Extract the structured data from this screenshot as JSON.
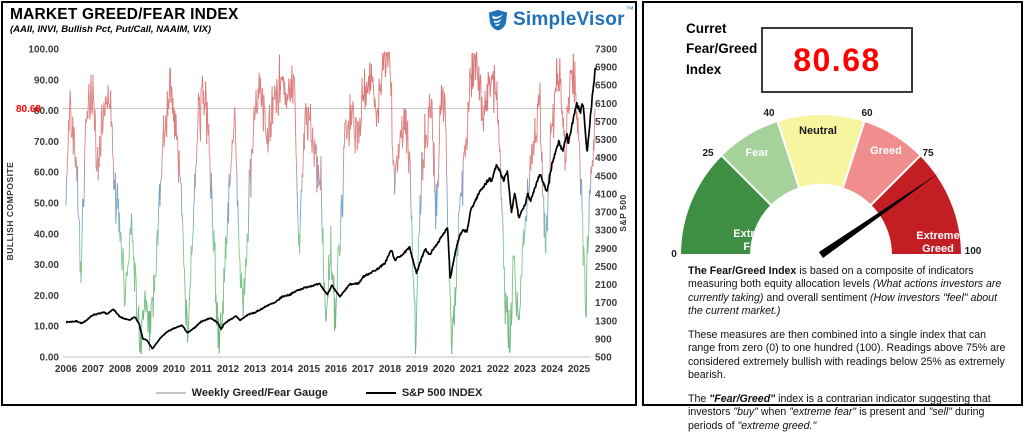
{
  "left_panel": {
    "title": "MARKET GREED/FEAR INDEX",
    "subtitle": "(AAII, INVI, Bullish Pct, Put/Call, NAAIM, VIX)",
    "logo": {
      "name": "SimpleVisor",
      "tm": "™",
      "color": "#1F71B8"
    },
    "legend": [
      {
        "label": "Weekly Greed/Fear Gauge",
        "color": "#c8c8c4"
      },
      {
        "label": "S&P 500 INDEX",
        "color": "#000000"
      }
    ]
  },
  "chart_data": {
    "type": "line",
    "title": "MARKET GREED/FEAR INDEX",
    "subtitle": "(AAII, INVI, Bullish Pct, Put/Call, NAAIM, VIX)",
    "x_ticks": [
      2006,
      2007,
      2008,
      2009,
      2010,
      2011,
      2012,
      2013,
      2014,
      2015,
      2016,
      2017,
      2018,
      2019,
      2020,
      2021,
      2022,
      2023,
      2024,
      2025
    ],
    "left_axis": {
      "label": "BULLISH COMPOSITE",
      "min": 0,
      "max": 100,
      "ticks": [
        "100.00",
        "90.00",
        "80.00",
        "70.00",
        "60.00",
        "50.00",
        "40.00",
        "30.00",
        "20.00",
        "10.00",
        "0.00"
      ]
    },
    "right_axis": {
      "label": "S&P 500",
      "min": 500,
      "max": 7300,
      "ticks": [
        7300,
        6900,
        6500,
        6100,
        5700,
        5300,
        4900,
        4500,
        4100,
        3700,
        3300,
        2900,
        2500,
        2100,
        1700,
        1300,
        900,
        500
      ]
    },
    "reference_line": {
      "value": 80.68,
      "label": "80.68",
      "label_color": "#FF0000",
      "line_color": "#c6c6c6"
    },
    "series": [
      {
        "name": "Weekly Greed/Fear Gauge",
        "axis": "left",
        "style": "value-gradient",
        "color_stops": [
          [
            0,
            "#5FA96E"
          ],
          [
            38,
            "#7CC48A"
          ],
          [
            45,
            "#6FA0C6"
          ],
          [
            54,
            "#6E97C3"
          ],
          [
            62,
            "#D98080"
          ],
          [
            100,
            "#D96666"
          ]
        ],
        "anchors": [
          [
            2006.0,
            50
          ],
          [
            2006.15,
            85
          ],
          [
            2006.4,
            60
          ],
          [
            2006.55,
            30
          ],
          [
            2006.75,
            75
          ],
          [
            2007.0,
            88
          ],
          [
            2007.15,
            60
          ],
          [
            2007.4,
            80
          ],
          [
            2007.6,
            88
          ],
          [
            2007.8,
            55
          ],
          [
            2008.0,
            40
          ],
          [
            2008.2,
            18
          ],
          [
            2008.4,
            45
          ],
          [
            2008.6,
            20
          ],
          [
            2008.75,
            2
          ],
          [
            2008.9,
            15
          ],
          [
            2009.1,
            8
          ],
          [
            2009.3,
            25
          ],
          [
            2009.6,
            70
          ],
          [
            2009.85,
            88
          ],
          [
            2010.1,
            75
          ],
          [
            2010.35,
            40
          ],
          [
            2010.5,
            4
          ],
          [
            2010.7,
            40
          ],
          [
            2010.9,
            75
          ],
          [
            2011.1,
            88
          ],
          [
            2011.3,
            70
          ],
          [
            2011.55,
            25
          ],
          [
            2011.68,
            4
          ],
          [
            2011.85,
            20
          ],
          [
            2012.05,
            60
          ],
          [
            2012.25,
            75
          ],
          [
            2012.45,
            30
          ],
          [
            2012.6,
            18
          ],
          [
            2012.8,
            55
          ],
          [
            2013.0,
            78
          ],
          [
            2013.2,
            88
          ],
          [
            2013.45,
            70
          ],
          [
            2013.7,
            82
          ],
          [
            2013.95,
            90
          ],
          [
            2014.2,
            82
          ],
          [
            2014.45,
            88
          ],
          [
            2014.65,
            35
          ],
          [
            2014.8,
            70
          ],
          [
            2015.0,
            80
          ],
          [
            2015.2,
            65
          ],
          [
            2015.45,
            55
          ],
          [
            2015.62,
            8
          ],
          [
            2015.8,
            40
          ],
          [
            2015.95,
            12
          ],
          [
            2016.1,
            30
          ],
          [
            2016.35,
            70
          ],
          [
            2016.6,
            78
          ],
          [
            2016.8,
            70
          ],
          [
            2017.0,
            85
          ],
          [
            2017.25,
            92
          ],
          [
            2017.5,
            80
          ],
          [
            2017.75,
            95
          ],
          [
            2018.0,
            99
          ],
          [
            2018.15,
            55
          ],
          [
            2018.35,
            70
          ],
          [
            2018.55,
            78
          ],
          [
            2018.75,
            60
          ],
          [
            2018.95,
            5
          ],
          [
            2019.15,
            55
          ],
          [
            2019.35,
            75
          ],
          [
            2019.55,
            80
          ],
          [
            2019.7,
            45
          ],
          [
            2019.9,
            88
          ],
          [
            2020.05,
            80
          ],
          [
            2020.18,
            30
          ],
          [
            2020.28,
            2
          ],
          [
            2020.45,
            25
          ],
          [
            2020.65,
            55
          ],
          [
            2020.85,
            75
          ],
          [
            2021.0,
            90
          ],
          [
            2021.2,
            96
          ],
          [
            2021.45,
            80
          ],
          [
            2021.7,
            90
          ],
          [
            2021.95,
            88
          ],
          [
            2022.1,
            60
          ],
          [
            2022.25,
            20
          ],
          [
            2022.45,
            8
          ],
          [
            2022.6,
            30
          ],
          [
            2022.75,
            10
          ],
          [
            2022.95,
            35
          ],
          [
            2023.15,
            60
          ],
          [
            2023.35,
            72
          ],
          [
            2023.55,
            82
          ],
          [
            2023.75,
            35
          ],
          [
            2023.95,
            70
          ],
          [
            2024.1,
            85
          ],
          [
            2024.3,
            90
          ],
          [
            2024.5,
            65
          ],
          [
            2024.7,
            92
          ],
          [
            2024.9,
            88
          ],
          [
            2025.05,
            60
          ],
          [
            2025.25,
            18
          ],
          [
            2025.4,
            55
          ],
          [
            2025.6,
            80.68
          ]
        ],
        "last_value": 80.68
      },
      {
        "name": "S&P 500 INDEX",
        "axis": "right",
        "color": "#000000",
        "anchors": [
          [
            2006.0,
            1270
          ],
          [
            2006.4,
            1290
          ],
          [
            2006.6,
            1240
          ],
          [
            2007.0,
            1430
          ],
          [
            2007.4,
            1480
          ],
          [
            2007.55,
            1450
          ],
          [
            2007.75,
            1560
          ],
          [
            2008.0,
            1380
          ],
          [
            2008.35,
            1310
          ],
          [
            2008.55,
            1390
          ],
          [
            2008.7,
            1250
          ],
          [
            2008.85,
            900
          ],
          [
            2009.0,
            870
          ],
          [
            2009.2,
            680
          ],
          [
            2009.5,
            920
          ],
          [
            2009.75,
            1060
          ],
          [
            2010.0,
            1130
          ],
          [
            2010.3,
            1200
          ],
          [
            2010.5,
            1030
          ],
          [
            2010.75,
            1140
          ],
          [
            2011.0,
            1280
          ],
          [
            2011.35,
            1360
          ],
          [
            2011.6,
            1270
          ],
          [
            2011.75,
            1120
          ],
          [
            2011.85,
            1220
          ],
          [
            2012.0,
            1300
          ],
          [
            2012.3,
            1400
          ],
          [
            2012.45,
            1310
          ],
          [
            2012.75,
            1440
          ],
          [
            2013.0,
            1480
          ],
          [
            2013.5,
            1650
          ],
          [
            2013.75,
            1700
          ],
          [
            2014.0,
            1830
          ],
          [
            2014.3,
            1880
          ],
          [
            2014.6,
            1980
          ],
          [
            2014.8,
            2020
          ],
          [
            2015.0,
            2060
          ],
          [
            2015.4,
            2110
          ],
          [
            2015.67,
            1880
          ],
          [
            2015.85,
            2080
          ],
          [
            2016.0,
            1940
          ],
          [
            2016.15,
            1830
          ],
          [
            2016.5,
            2100
          ],
          [
            2016.85,
            2130
          ],
          [
            2017.0,
            2270
          ],
          [
            2017.5,
            2430
          ],
          [
            2017.8,
            2560
          ],
          [
            2018.05,
            2870
          ],
          [
            2018.17,
            2640
          ],
          [
            2018.5,
            2780
          ],
          [
            2018.73,
            2920
          ],
          [
            2018.98,
            2350
          ],
          [
            2019.3,
            2900
          ],
          [
            2019.45,
            2750
          ],
          [
            2019.62,
            2890
          ],
          [
            2020.0,
            3230
          ],
          [
            2020.13,
            3380
          ],
          [
            2020.23,
            2240
          ],
          [
            2020.45,
            2900
          ],
          [
            2020.6,
            3200
          ],
          [
            2020.72,
            3300
          ],
          [
            2020.85,
            3270
          ],
          [
            2021.0,
            3760
          ],
          [
            2021.35,
            4180
          ],
          [
            2021.7,
            4450
          ],
          [
            2021.75,
            4350
          ],
          [
            2021.95,
            4770
          ],
          [
            2022.2,
            4400
          ],
          [
            2022.35,
            4580
          ],
          [
            2022.5,
            3670
          ],
          [
            2022.62,
            4130
          ],
          [
            2022.77,
            3580
          ],
          [
            2023.0,
            3850
          ],
          [
            2023.1,
            4100
          ],
          [
            2023.2,
            3950
          ],
          [
            2023.55,
            4550
          ],
          [
            2023.82,
            4120
          ],
          [
            2024.0,
            4770
          ],
          [
            2024.25,
            5250
          ],
          [
            2024.4,
            5050
          ],
          [
            2024.55,
            5450
          ],
          [
            2024.6,
            5200
          ],
          [
            2024.75,
            5650
          ],
          [
            2024.92,
            6090
          ],
          [
            2025.05,
            5900
          ],
          [
            2025.15,
            6120
          ],
          [
            2025.3,
            4980
          ],
          [
            2025.45,
            5970
          ],
          [
            2025.6,
            6880
          ]
        ],
        "last_value": 6880
      }
    ],
    "legend": [
      "Weekly Greed/Fear Gauge",
      "S&P 500 INDEX"
    ],
    "grid": "reference-line-only",
    "legend_position": "bottom-center"
  },
  "right_panel": {
    "current_label": "Curret Fear/Greed Index",
    "current_value": "80.68",
    "value_color": "#FF0000",
    "gauge": {
      "min": 0,
      "max": 100,
      "boundaries": [
        0,
        25,
        40,
        60,
        75,
        100
      ],
      "needle_value": 80.68,
      "needle_color": "#000000",
      "segments": [
        {
          "label": "Extreme Fear",
          "from": 0,
          "to": 25,
          "color": "#3E8E44",
          "text_color": "#FFFFFF",
          "two_line": true
        },
        {
          "label": "Fear",
          "from": 25,
          "to": 40,
          "color": "#A5D29B",
          "text_color": "#FFFFFF",
          "two_line": false
        },
        {
          "label": "Neutral",
          "from": 40,
          "to": 60,
          "color": "#F7F5A0",
          "text_color": "#1A1A1A",
          "two_line": false
        },
        {
          "label": "Greed",
          "from": 60,
          "to": 75,
          "color": "#F08D8D",
          "text_color": "#FFFFFF",
          "two_line": false
        },
        {
          "label": "Extreme Greed",
          "from": 75,
          "to": 100,
          "color": "#C41E25",
          "text_color": "#FFFFFF",
          "two_line": true
        }
      ]
    },
    "description": {
      "paragraphs": [
        [
          {
            "t": "The Fear/Greed Index",
            "b": 1
          },
          {
            "t": " is based on a composite of indicators measuring both equity allocation levels "
          },
          {
            "t": "(What actions investors are currently taking)",
            "i": 1
          },
          {
            "t": " and overall sentiment "
          },
          {
            "t": "(How investors \"feel\" about the current market.)",
            "i": 1
          }
        ],
        [
          {
            "t": "These measures are then combined into a single index that can range from zero (0) to one hundred (100). Readings above 75% are considered extremely bullish with readings below 25% as extremely bearish."
          }
        ],
        [
          {
            "t": "The "
          },
          {
            "t": "\"Fear/Greed\"",
            "b": 1,
            "i": 1
          },
          {
            "t": " index is a contrarian indicator suggesting that investors "
          },
          {
            "t": "\"buy\"",
            "i": 1
          },
          {
            "t": " when "
          },
          {
            "t": "\"extreme fear\"",
            "i": 1
          },
          {
            "t": " is present and "
          },
          {
            "t": "\"sell\"",
            "i": 1
          },
          {
            "t": " during periods of "
          },
          {
            "t": "\"extreme greed.\"",
            "i": 1
          }
        ]
      ]
    }
  }
}
